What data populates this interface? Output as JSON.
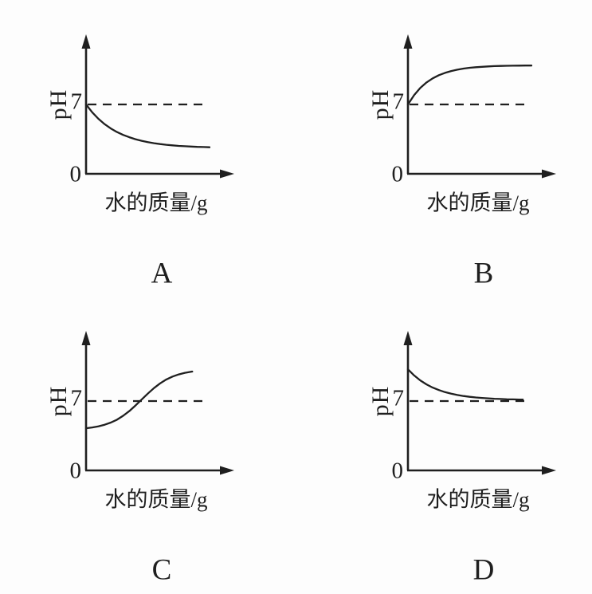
{
  "page": {
    "background_color": "#fdfdfd",
    "ink_color": "#1f1f1f",
    "description_layout": "2x2 grid of four pH-vs-water-mass option graphs"
  },
  "chart_data": [
    {
      "letter": "A",
      "type": "line",
      "title": "A",
      "xlabel": "水的质量/g",
      "ylabel": "pH",
      "origin_tick": "0",
      "y_tick": {
        "pH": 7,
        "label": "7"
      },
      "reference_line": {
        "pH": 7,
        "style": "dashed"
      },
      "ylim": [
        0,
        13
      ],
      "xlim_frac": [
        0,
        1
      ],
      "grid": false,
      "legend": false,
      "shape": "starts at pH 7 on the axis and decreases, concave up, leveling off near pH 2.7",
      "series": [
        {
          "name": "pH curve",
          "x_frac": [
            0,
            0.05,
            0.1,
            0.15,
            0.2,
            0.25,
            0.3,
            0.35,
            0.4,
            0.45,
            0.5,
            0.55,
            0.6,
            0.65,
            0.7,
            0.75,
            0.8,
            0.85,
            0.9,
            0.95,
            1.0
          ],
          "pH": [
            7.0,
            6.2,
            5.55,
            5.01,
            4.58,
            4.22,
            3.93,
            3.69,
            3.49,
            3.33,
            3.2,
            3.09,
            3.0,
            2.93,
            2.87,
            2.82,
            2.78,
            2.75,
            2.72,
            2.7,
            2.68
          ]
        }
      ]
    },
    {
      "letter": "B",
      "type": "line",
      "title": "B",
      "xlabel": "水的质量/g",
      "ylabel": "pH",
      "origin_tick": "0",
      "y_tick": {
        "pH": 7,
        "label": "7"
      },
      "reference_line": {
        "pH": 7,
        "style": "dashed"
      },
      "ylim": [
        0,
        13
      ],
      "xlim_frac": [
        0,
        1
      ],
      "grid": false,
      "legend": false,
      "shape": "starts at pH 7 on the axis and increases, concave down, leveling off near pH 10.9",
      "series": [
        {
          "name": "pH curve",
          "x_frac": [
            0,
            0.05,
            0.1,
            0.15,
            0.2,
            0.25,
            0.3,
            0.35,
            0.4,
            0.45,
            0.5,
            0.55,
            0.6,
            0.65,
            0.7,
            0.75,
            0.8,
            0.85,
            0.9,
            0.95,
            1.0
          ],
          "pH": [
            7.0,
            7.95,
            8.67,
            9.22,
            9.63,
            9.95,
            10.19,
            10.37,
            10.51,
            10.62,
            10.7,
            10.76,
            10.8,
            10.84,
            10.87,
            10.89,
            10.9,
            10.91,
            10.92,
            10.93,
            10.93
          ]
        }
      ]
    },
    {
      "letter": "C",
      "type": "line",
      "title": "C",
      "xlabel": "水的质量/g",
      "ylabel": "pH",
      "origin_tick": "0",
      "y_tick": {
        "pH": 7,
        "label": "7"
      },
      "reference_line": {
        "pH": 7,
        "style": "dashed"
      },
      "ylim": [
        0,
        13
      ],
      "xlim_frac": [
        0,
        0.86
      ],
      "grid": false,
      "legend": false,
      "shape": "S-curve starting near pH 4.2, rising through the pH 7 dashed line, leveling off near pH 10",
      "series": [
        {
          "name": "pH curve",
          "x_frac": [
            0,
            0.05,
            0.1,
            0.15,
            0.2,
            0.25,
            0.3,
            0.35,
            0.4,
            0.45,
            0.5,
            0.55,
            0.6,
            0.65,
            0.7,
            0.75,
            0.8,
            0.85,
            0.86
          ],
          "pH": [
            4.26,
            4.34,
            4.45,
            4.61,
            4.83,
            5.12,
            5.51,
            5.99,
            6.55,
            7.15,
            7.75,
            8.31,
            8.79,
            9.18,
            9.47,
            9.69,
            9.85,
            9.96,
            9.98
          ]
        }
      ]
    },
    {
      "letter": "D",
      "type": "line",
      "title": "D",
      "xlabel": "水的质量/g",
      "ylabel": "pH",
      "origin_tick": "0",
      "y_tick": {
        "pH": 7,
        "label": "7"
      },
      "reference_line": {
        "pH": 7,
        "style": "dashed"
      },
      "ylim": [
        0,
        13
      ],
      "xlim_frac": [
        0,
        0.93
      ],
      "grid": false,
      "legend": false,
      "shape": "starts near pH 10.2 and decreases, concave up, approaching the pH 7 dashed line from above",
      "series": [
        {
          "name": "pH curve",
          "x_frac": [
            0,
            0.05,
            0.1,
            0.15,
            0.2,
            0.25,
            0.3,
            0.35,
            0.4,
            0.45,
            0.5,
            0.55,
            0.6,
            0.65,
            0.7,
            0.75,
            0.8,
            0.85,
            0.9,
            0.93
          ],
          "pH": [
            10.2,
            9.58,
            9.08,
            8.68,
            8.36,
            8.11,
            7.9,
            7.74,
            7.61,
            7.51,
            7.43,
            7.36,
            7.31,
            7.27,
            7.23,
            7.21,
            7.18,
            7.17,
            7.15,
            7.15
          ]
        }
      ]
    }
  ]
}
